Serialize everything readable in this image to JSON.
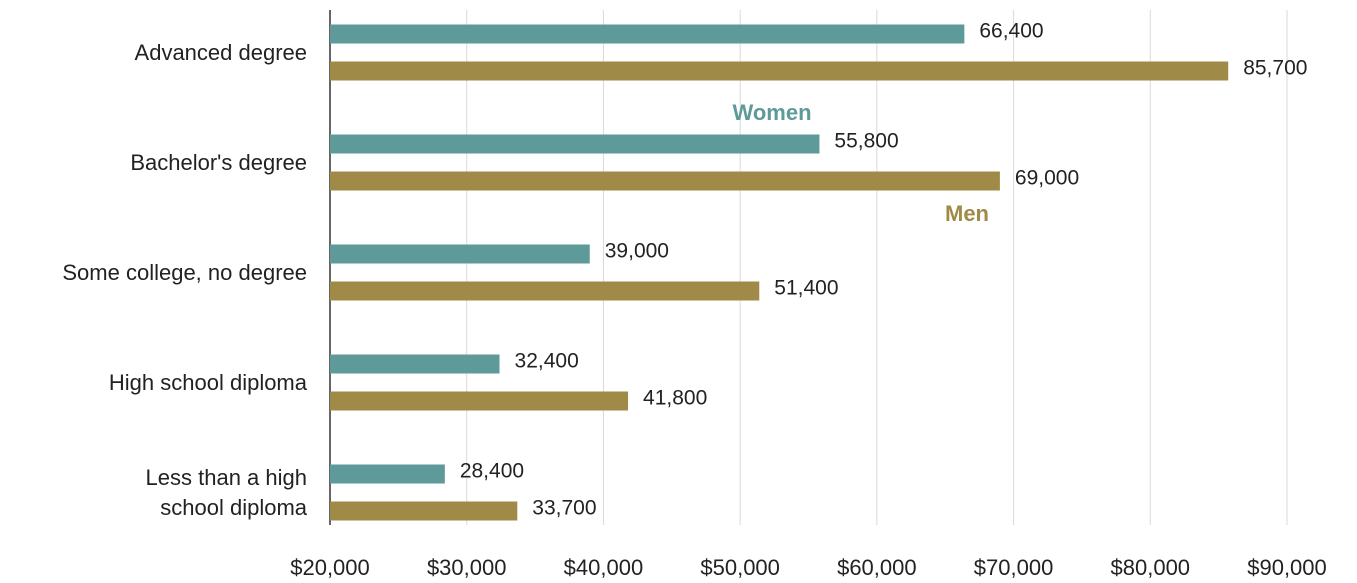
{
  "chart_data": {
    "type": "bar",
    "orientation": "horizontal",
    "categories": [
      "Advanced degree",
      "Bachelor's degree",
      "Some college, no degree",
      "High school diploma",
      "Less than a high school diploma"
    ],
    "series": [
      {
        "name": "Women",
        "color": "#5f9a9a",
        "values": [
          66400,
          55800,
          39000,
          32400,
          28400
        ],
        "value_labels": [
          "66,400",
          "55,800",
          "39,000",
          "32,400",
          "28,400"
        ]
      },
      {
        "name": "Men",
        "color": "#a08a48",
        "values": [
          85700,
          69000,
          51400,
          41800,
          33700
        ],
        "value_labels": [
          "85,700",
          "69,000",
          "51,400",
          "41,800",
          "33,700"
        ]
      }
    ],
    "xlim": [
      20000,
      90000
    ],
    "xticks": [
      {
        "value": 20000,
        "label": "$20,000"
      },
      {
        "value": 30000,
        "label": "$30,000"
      },
      {
        "value": 40000,
        "label": "$40,000"
      },
      {
        "value": 50000,
        "label": "$50,000"
      },
      {
        "value": 60000,
        "label": "$60,000"
      },
      {
        "value": 70000,
        "label": "$70,000"
      },
      {
        "value": 80000,
        "label": "$80,000"
      },
      {
        "value": 90000,
        "label": "$90,000"
      }
    ],
    "grid": true
  }
}
